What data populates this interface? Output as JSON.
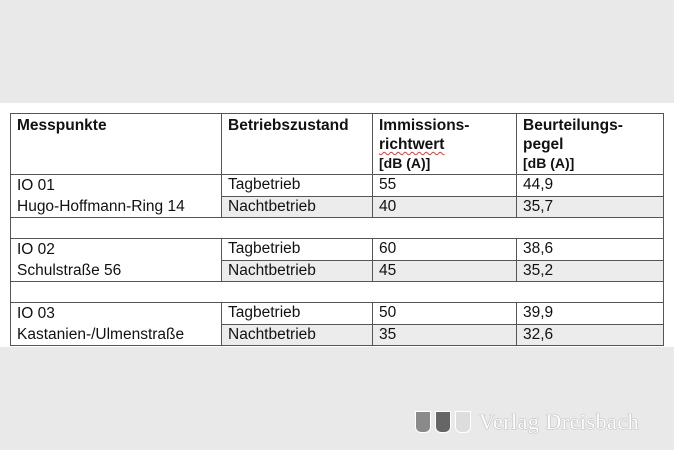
{
  "table": {
    "headers": {
      "messpunkte": "Messpunkte",
      "betriebszustand": "Betriebszustand",
      "immissions_line1": "Immissions-",
      "immissions_line2": "richtwert",
      "immissions_unit": "[dB (A)]",
      "beurteilung_line1": "Beurteilungs-",
      "beurteilung_line2": "pegel",
      "beurteilung_unit": "[dB (A)]"
    },
    "groups": [
      {
        "id": "IO 01",
        "name": "Hugo-Hoffmann-Ring 14",
        "rows": [
          {
            "zustand": "Tagbetrieb",
            "richtwert": "55",
            "pegel": "44,9"
          },
          {
            "zustand": "Nachtbetrieb",
            "richtwert": "40",
            "pegel": "35,7"
          }
        ]
      },
      {
        "id": "IO 02",
        "name": "Schulstraße 56",
        "rows": [
          {
            "zustand": "Tagbetrieb",
            "richtwert": "60",
            "pegel": "38,6"
          },
          {
            "zustand": "Nachtbetrieb",
            "richtwert": "45",
            "pegel": "35,2"
          }
        ]
      },
      {
        "id": "IO 03",
        "name": "Kastanien-/Ulmenstraße",
        "rows": [
          {
            "zustand": "Tagbetrieb",
            "richtwert": "50",
            "pegel": "39,9"
          },
          {
            "zustand": "Nachtbetrieb",
            "richtwert": "35",
            "pegel": "32,6"
          }
        ]
      }
    ]
  },
  "watermark": {
    "text": "Verlag Dreisbach",
    "icon": "coat-of-arms-icon"
  },
  "colors": {
    "background": "#e9e9e9",
    "shaded_row": "#ececec"
  }
}
